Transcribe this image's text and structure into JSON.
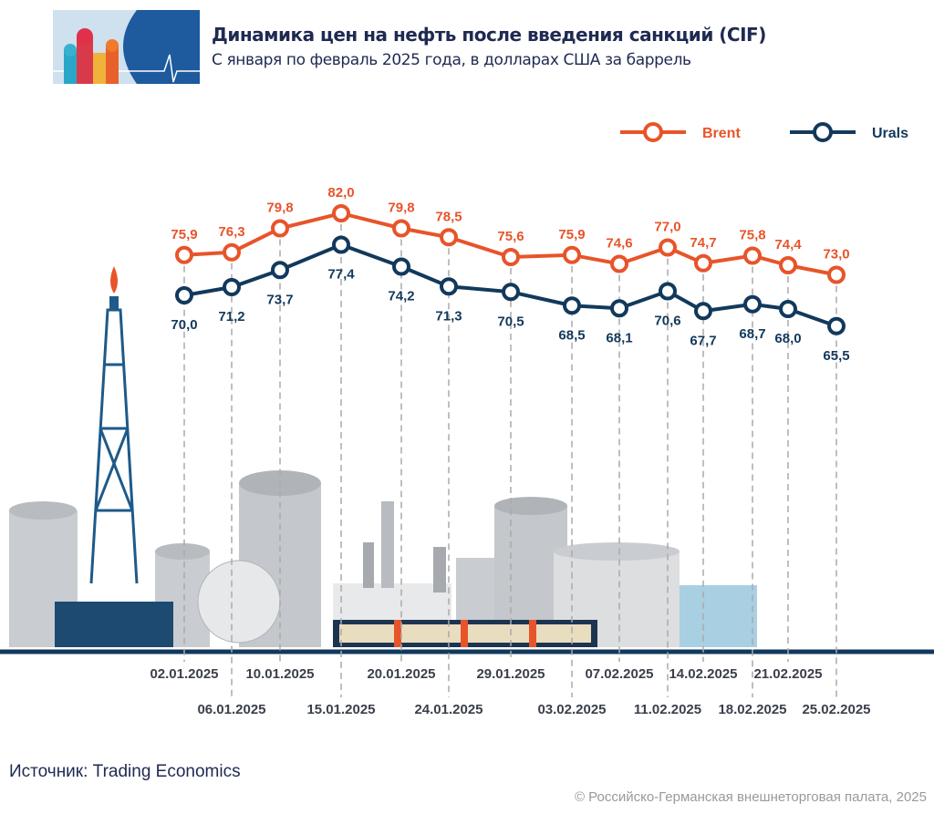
{
  "header": {
    "title": "Динамика цен на нефть после введения санкций (CIF)",
    "subtitle": "С января по февраль 2025 года, в долларах США за баррель"
  },
  "footer": {
    "source": "Источник: Trading Economics",
    "copyright": "© Российско-Германская внешнеторговая палата, 2025"
  },
  "chart_data": {
    "type": "line",
    "title": "Динамика цен на нефть после введения санкций (CIF)",
    "subtitle": "С января по февраль 2025 года, в долларах США за баррель",
    "legend_position": "top-right",
    "grid": false,
    "x": [
      "02.01.2025",
      "06.01.2025",
      "10.01.2025",
      "15.01.2025",
      "20.01.2025",
      "24.01.2025",
      "29.01.2025",
      "03.02.2025",
      "07.02.2025",
      "11.02.2025",
      "14.02.2025",
      "18.02.2025",
      "21.02.2025",
      "25.02.2025"
    ],
    "series": [
      {
        "name": "Brent",
        "color": "#e8542a",
        "values": [
          75.9,
          76.3,
          79.8,
          82.0,
          79.8,
          78.5,
          75.6,
          75.9,
          74.6,
          77.0,
          74.7,
          75.8,
          74.4,
          73.0
        ],
        "labels": [
          "75,9",
          "76,3",
          "79,8",
          "82,0",
          "79,8",
          "78,5",
          "75,6",
          "75,9",
          "74,6",
          "77,0",
          "74,7",
          "75,8",
          "74,4",
          "73,0"
        ]
      },
      {
        "name": "Urals",
        "color": "#12395c",
        "values": [
          70.0,
          71.2,
          73.7,
          77.4,
          74.2,
          71.3,
          70.5,
          68.5,
          68.1,
          70.6,
          67.7,
          68.7,
          68.0,
          65.5
        ],
        "labels": [
          "70,0",
          "71,2",
          "73,7",
          "77,4",
          "74,2",
          "71,3",
          "70,5",
          "68,5",
          "68,1",
          "70,6",
          "67,7",
          "68,7",
          "68,0",
          "65,5"
        ]
      }
    ]
  }
}
